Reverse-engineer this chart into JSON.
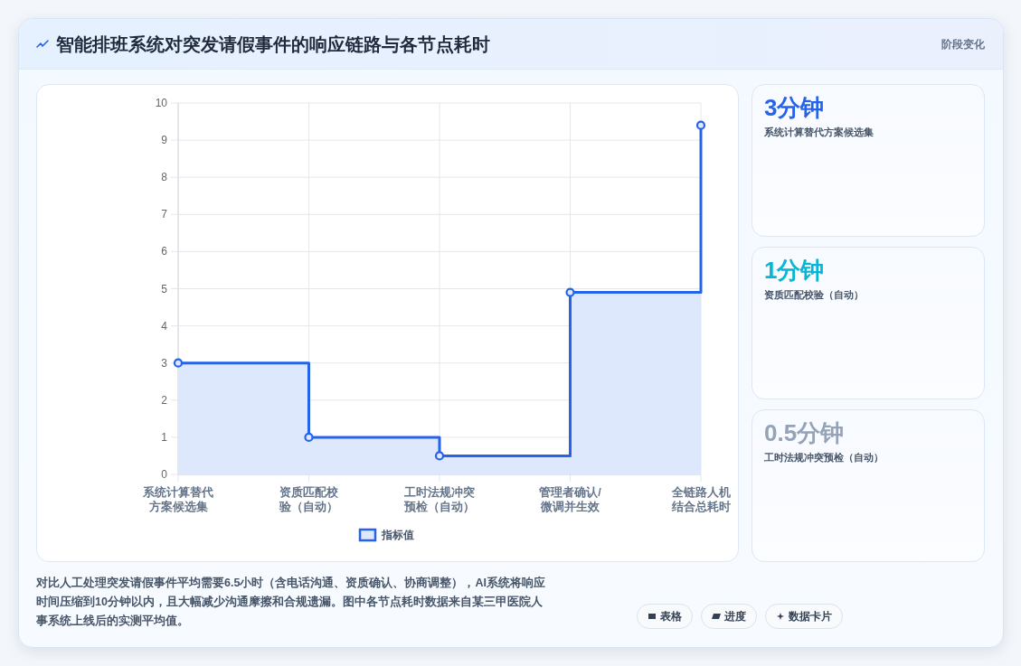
{
  "chart_data": [
    {
      "type": "other",
      "title": "智能排班系统对突发请假事件的响应链路与各节点耗时",
      "subtitle": "阶段变化"
    },
    {
      "type": "step",
      "categories": [
        "系统计算替代方案候选集",
        "资质匹配校验（自动）",
        "工时法规冲突预检（自动）",
        "管理者确认/微调并生效",
        "全链路人机结合总耗时"
      ],
      "series": [
        {
          "name": "指标值",
          "type": "area",
          "color": "#2563eb",
          "values": [
            3,
            1,
            0.5,
            4.9,
            9.4
          ]
        }
      ],
      "ylim": [
        0,
        10
      ],
      "yticks": [
        0,
        1,
        2,
        3,
        4,
        5,
        6,
        7,
        8,
        9,
        10
      ],
      "grid": true,
      "legend": "bottom",
      "marker": "circle"
    },
    {
      "type": "other",
      "title": "3分钟",
      "subtitle": "系统计算替代方案候选集",
      "color": "#2563eb"
    },
    {
      "type": "other",
      "title": "1分钟",
      "subtitle": "资质匹配校验（自动）",
      "color": "#06b6d4"
    },
    {
      "type": "other",
      "title": "0.5分钟",
      "subtitle": "工时法规冲突预检（自动）",
      "color": "#94a3b8"
    },
    {
      "type": "other",
      "annotations": [
        "对比人工处理突发请假事件平均需要6.5小时（含电话沟通、资质确认、协商调整），AI系统将响应时间压缩到10分钟以内，且大幅减少沟通摩擦和合规遗漏。图中各节点耗时数据来自某三甲医院人事系统上线后的实测平均值。",
        "表格",
        "进度",
        "数据卡片"
      ]
    }
  ]
}
